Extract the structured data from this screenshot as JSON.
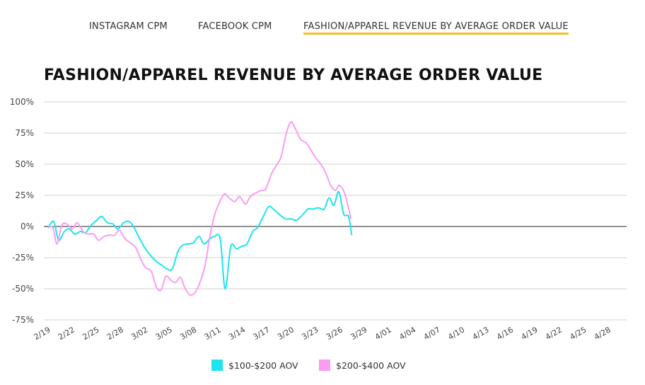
{
  "tabs": [
    {
      "label": "INSTAGRAM CPM",
      "active": false
    },
    {
      "label": "FACEBOOK CPM",
      "active": false
    },
    {
      "label": "FASHION/APPAREL REVENUE BY AVERAGE ORDER VALUE",
      "active": true
    }
  ],
  "colors": {
    "accent_underline": "#f2c12e",
    "series_1": "#1de4ee",
    "series_2": "#f99cf2"
  },
  "chart_data": {
    "type": "line",
    "title": "FASHION/APPAREL REVENUE BY AVERAGE ORDER VALUE",
    "xlabel": "",
    "ylabel": "",
    "ylim": [
      -75,
      100
    ],
    "yticks": [
      "100%",
      "75%",
      "50%",
      "25%",
      "0%",
      "-25%",
      "-50%",
      "-75%"
    ],
    "ytick_values": [
      100,
      75,
      50,
      25,
      0,
      -25,
      -50,
      -75
    ],
    "xticks": [
      "2/19",
      "2/22",
      "2/25",
      "2/28",
      "3/02",
      "3/05",
      "3/08",
      "3/11",
      "3/14",
      "3/17",
      "3/20",
      "3/23",
      "3/26",
      "3/29",
      "4/01",
      "4/04",
      "4/07",
      "4/10",
      "4/13",
      "4/16",
      "4/19",
      "4/22",
      "4/25",
      "4/28"
    ],
    "grid": true,
    "legend_position": "bottom-center",
    "series": [
      {
        "name": "$100-$200 AOV",
        "color": "#1de4ee",
        "points": [
          [
            0,
            -1
          ],
          [
            0.7,
            4
          ],
          [
            1.3,
            -11
          ],
          [
            2.0,
            -4
          ],
          [
            2.6,
            -2
          ],
          [
            3.3,
            -6
          ],
          [
            4.0,
            -4
          ],
          [
            4.6,
            -5
          ],
          [
            5.3,
            1
          ],
          [
            6.0,
            5
          ],
          [
            6.6,
            8
          ],
          [
            7.3,
            3
          ],
          [
            8.0,
            2
          ],
          [
            8.6,
            -2
          ],
          [
            9.3,
            3
          ],
          [
            10.0,
            4
          ],
          [
            10.6,
            -1
          ],
          [
            11.3,
            -10
          ],
          [
            12.0,
            -18
          ],
          [
            12.6,
            -23
          ],
          [
            13.3,
            -28
          ],
          [
            14.0,
            -31
          ],
          [
            14.6,
            -34
          ],
          [
            15.3,
            -34
          ],
          [
            16.0,
            -20
          ],
          [
            16.6,
            -15
          ],
          [
            17.3,
            -14
          ],
          [
            17.9,
            -13
          ],
          [
            18.6,
            -8
          ],
          [
            19.2,
            -14
          ],
          [
            19.9,
            -10
          ],
          [
            20.5,
            -8
          ],
          [
            21.2,
            -10
          ],
          [
            21.8,
            -50
          ],
          [
            22.5,
            -16
          ],
          [
            23.2,
            -18
          ],
          [
            23.8,
            -16
          ],
          [
            24.5,
            -14
          ],
          [
            25.2,
            -4
          ],
          [
            25.8,
            -1
          ],
          [
            26.5,
            8
          ],
          [
            27.2,
            16
          ],
          [
            27.9,
            13
          ],
          [
            28.6,
            9
          ],
          [
            29.3,
            6
          ],
          [
            30.0,
            6
          ],
          [
            30.6,
            5
          ],
          [
            31.3,
            9
          ],
          [
            32.0,
            14
          ],
          [
            32.6,
            14
          ],
          [
            33.3,
            15
          ],
          [
            34.0,
            14
          ],
          [
            34.6,
            23
          ],
          [
            35.2,
            17
          ],
          [
            35.8,
            28
          ],
          [
            36.4,
            10
          ],
          [
            37.0,
            8
          ],
          [
            37.4,
            -7
          ]
        ]
      },
      {
        "name": "$200-$400 AOV",
        "color": "#f99cf2",
        "points": [
          [
            0,
            -1
          ],
          [
            0.6,
            -1
          ],
          [
            1.1,
            -14
          ],
          [
            1.7,
            1
          ],
          [
            2.3,
            2
          ],
          [
            3.0,
            -2
          ],
          [
            3.6,
            3
          ],
          [
            4.3,
            -4
          ],
          [
            4.9,
            -6
          ],
          [
            5.6,
            -6
          ],
          [
            6.2,
            -11
          ],
          [
            6.9,
            -8
          ],
          [
            7.6,
            -7
          ],
          [
            8.2,
            -7
          ],
          [
            8.8,
            -3
          ],
          [
            9.5,
            -10
          ],
          [
            10.1,
            -13
          ],
          [
            10.8,
            -17
          ],
          [
            11.4,
            -26
          ],
          [
            12.0,
            -33
          ],
          [
            12.7,
            -36
          ],
          [
            13.3,
            -48
          ],
          [
            13.9,
            -51
          ],
          [
            14.5,
            -40
          ],
          [
            15.1,
            -43
          ],
          [
            15.7,
            -45
          ],
          [
            16.3,
            -41
          ],
          [
            16.9,
            -50
          ],
          [
            17.5,
            -55
          ],
          [
            18.1,
            -53
          ],
          [
            18.7,
            -45
          ],
          [
            19.3,
            -32
          ],
          [
            19.9,
            -9
          ],
          [
            20.5,
            9
          ],
          [
            21.1,
            19
          ],
          [
            21.7,
            26
          ],
          [
            22.3,
            23
          ],
          [
            23.0,
            20
          ],
          [
            23.6,
            24
          ],
          [
            24.3,
            18
          ],
          [
            24.9,
            24
          ],
          [
            25.6,
            27
          ],
          [
            26.3,
            29
          ],
          [
            26.8,
            30
          ],
          [
            27.5,
            42
          ],
          [
            28.1,
            49
          ],
          [
            28.7,
            56
          ],
          [
            29.3,
            74
          ],
          [
            29.9,
            84
          ],
          [
            30.5,
            78
          ],
          [
            31.1,
            70
          ],
          [
            31.8,
            67
          ],
          [
            32.4,
            61
          ],
          [
            33.0,
            55
          ],
          [
            33.6,
            50
          ],
          [
            34.2,
            43
          ],
          [
            34.8,
            33
          ],
          [
            35.4,
            29
          ],
          [
            35.9,
            33
          ],
          [
            36.6,
            25
          ],
          [
            37.3,
            6
          ]
        ]
      }
    ]
  }
}
